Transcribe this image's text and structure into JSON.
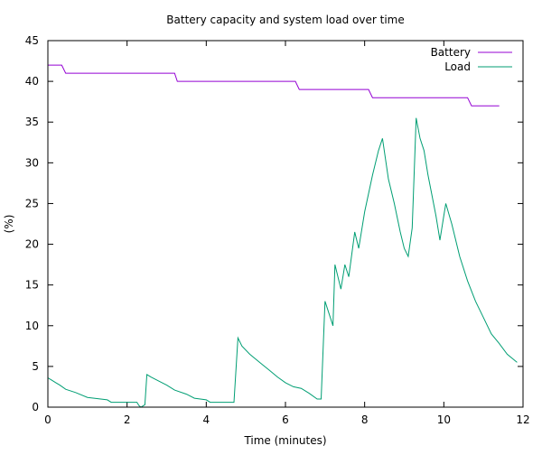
{
  "chart_data": {
    "type": "line",
    "title": "Battery capacity and system load over time",
    "xlabel": "Time (minutes)",
    "ylabel": "(%)",
    "xlim": [
      0,
      12
    ],
    "ylim": [
      0,
      45
    ],
    "x_ticks": [
      0,
      2,
      4,
      6,
      8,
      10,
      12
    ],
    "y_ticks": [
      0,
      5,
      10,
      15,
      20,
      25,
      30,
      35,
      40,
      45
    ],
    "grid": false,
    "legend_position": "top-right",
    "series": [
      {
        "name": "Battery",
        "color": "#9400d3",
        "points": [
          [
            0,
            42
          ],
          [
            0.35,
            42
          ],
          [
            0.45,
            41
          ],
          [
            3.2,
            41
          ],
          [
            3.27,
            40
          ],
          [
            6.25,
            40
          ],
          [
            6.35,
            39
          ],
          [
            8.1,
            39
          ],
          [
            8.2,
            38
          ],
          [
            10.6,
            38
          ],
          [
            10.7,
            37
          ],
          [
            11.4,
            37
          ]
        ]
      },
      {
        "name": "Load",
        "color": "#009e73",
        "points": [
          [
            0,
            3.6
          ],
          [
            0.1,
            3.3
          ],
          [
            0.2,
            3.0
          ],
          [
            0.3,
            2.7
          ],
          [
            0.45,
            2.2
          ],
          [
            0.7,
            1.8
          ],
          [
            1.0,
            1.2
          ],
          [
            1.5,
            0.9
          ],
          [
            1.6,
            0.6
          ],
          [
            2.25,
            0.6
          ],
          [
            2.3,
            0.2
          ],
          [
            2.35,
            0
          ],
          [
            2.45,
            0.3
          ],
          [
            2.5,
            4.0
          ],
          [
            2.6,
            3.7
          ],
          [
            2.8,
            3.2
          ],
          [
            3.0,
            2.7
          ],
          [
            3.2,
            2.1
          ],
          [
            3.5,
            1.6
          ],
          [
            3.7,
            1.1
          ],
          [
            4.0,
            0.9
          ],
          [
            4.1,
            0.6
          ],
          [
            4.7,
            0.6
          ],
          [
            4.8,
            8.5
          ],
          [
            4.9,
            7.5
          ],
          [
            5.1,
            6.5
          ],
          [
            5.4,
            5.3
          ],
          [
            5.6,
            4.5
          ],
          [
            5.8,
            3.7
          ],
          [
            6.0,
            3.0
          ],
          [
            6.2,
            2.5
          ],
          [
            6.4,
            2.3
          ],
          [
            6.6,
            1.7
          ],
          [
            6.8,
            1.0
          ],
          [
            6.9,
            1.0
          ],
          [
            7.0,
            13.0
          ],
          [
            7.2,
            10.0
          ],
          [
            7.25,
            17.5
          ],
          [
            7.4,
            14.5
          ],
          [
            7.5,
            17.5
          ],
          [
            7.6,
            16.0
          ],
          [
            7.75,
            21.5
          ],
          [
            7.85,
            19.5
          ],
          [
            8.0,
            24.0
          ],
          [
            8.2,
            28.5
          ],
          [
            8.35,
            31.5
          ],
          [
            8.45,
            33.0
          ],
          [
            8.6,
            28.0
          ],
          [
            8.75,
            25.0
          ],
          [
            8.9,
            21.5
          ],
          [
            9.0,
            19.5
          ],
          [
            9.1,
            18.5
          ],
          [
            9.2,
            22.0
          ],
          [
            9.3,
            35.5
          ],
          [
            9.4,
            33.0
          ],
          [
            9.5,
            31.5
          ],
          [
            9.6,
            28.5
          ],
          [
            9.7,
            26.0
          ],
          [
            9.8,
            23.5
          ],
          [
            9.9,
            20.5
          ],
          [
            10.0,
            23.5
          ],
          [
            10.05,
            25.0
          ],
          [
            10.2,
            22.5
          ],
          [
            10.4,
            18.5
          ],
          [
            10.6,
            15.5
          ],
          [
            10.8,
            13.0
          ],
          [
            11.0,
            11.0
          ],
          [
            11.2,
            9.0
          ],
          [
            11.4,
            7.8
          ],
          [
            11.6,
            6.5
          ],
          [
            11.85,
            5.5
          ]
        ]
      }
    ]
  }
}
